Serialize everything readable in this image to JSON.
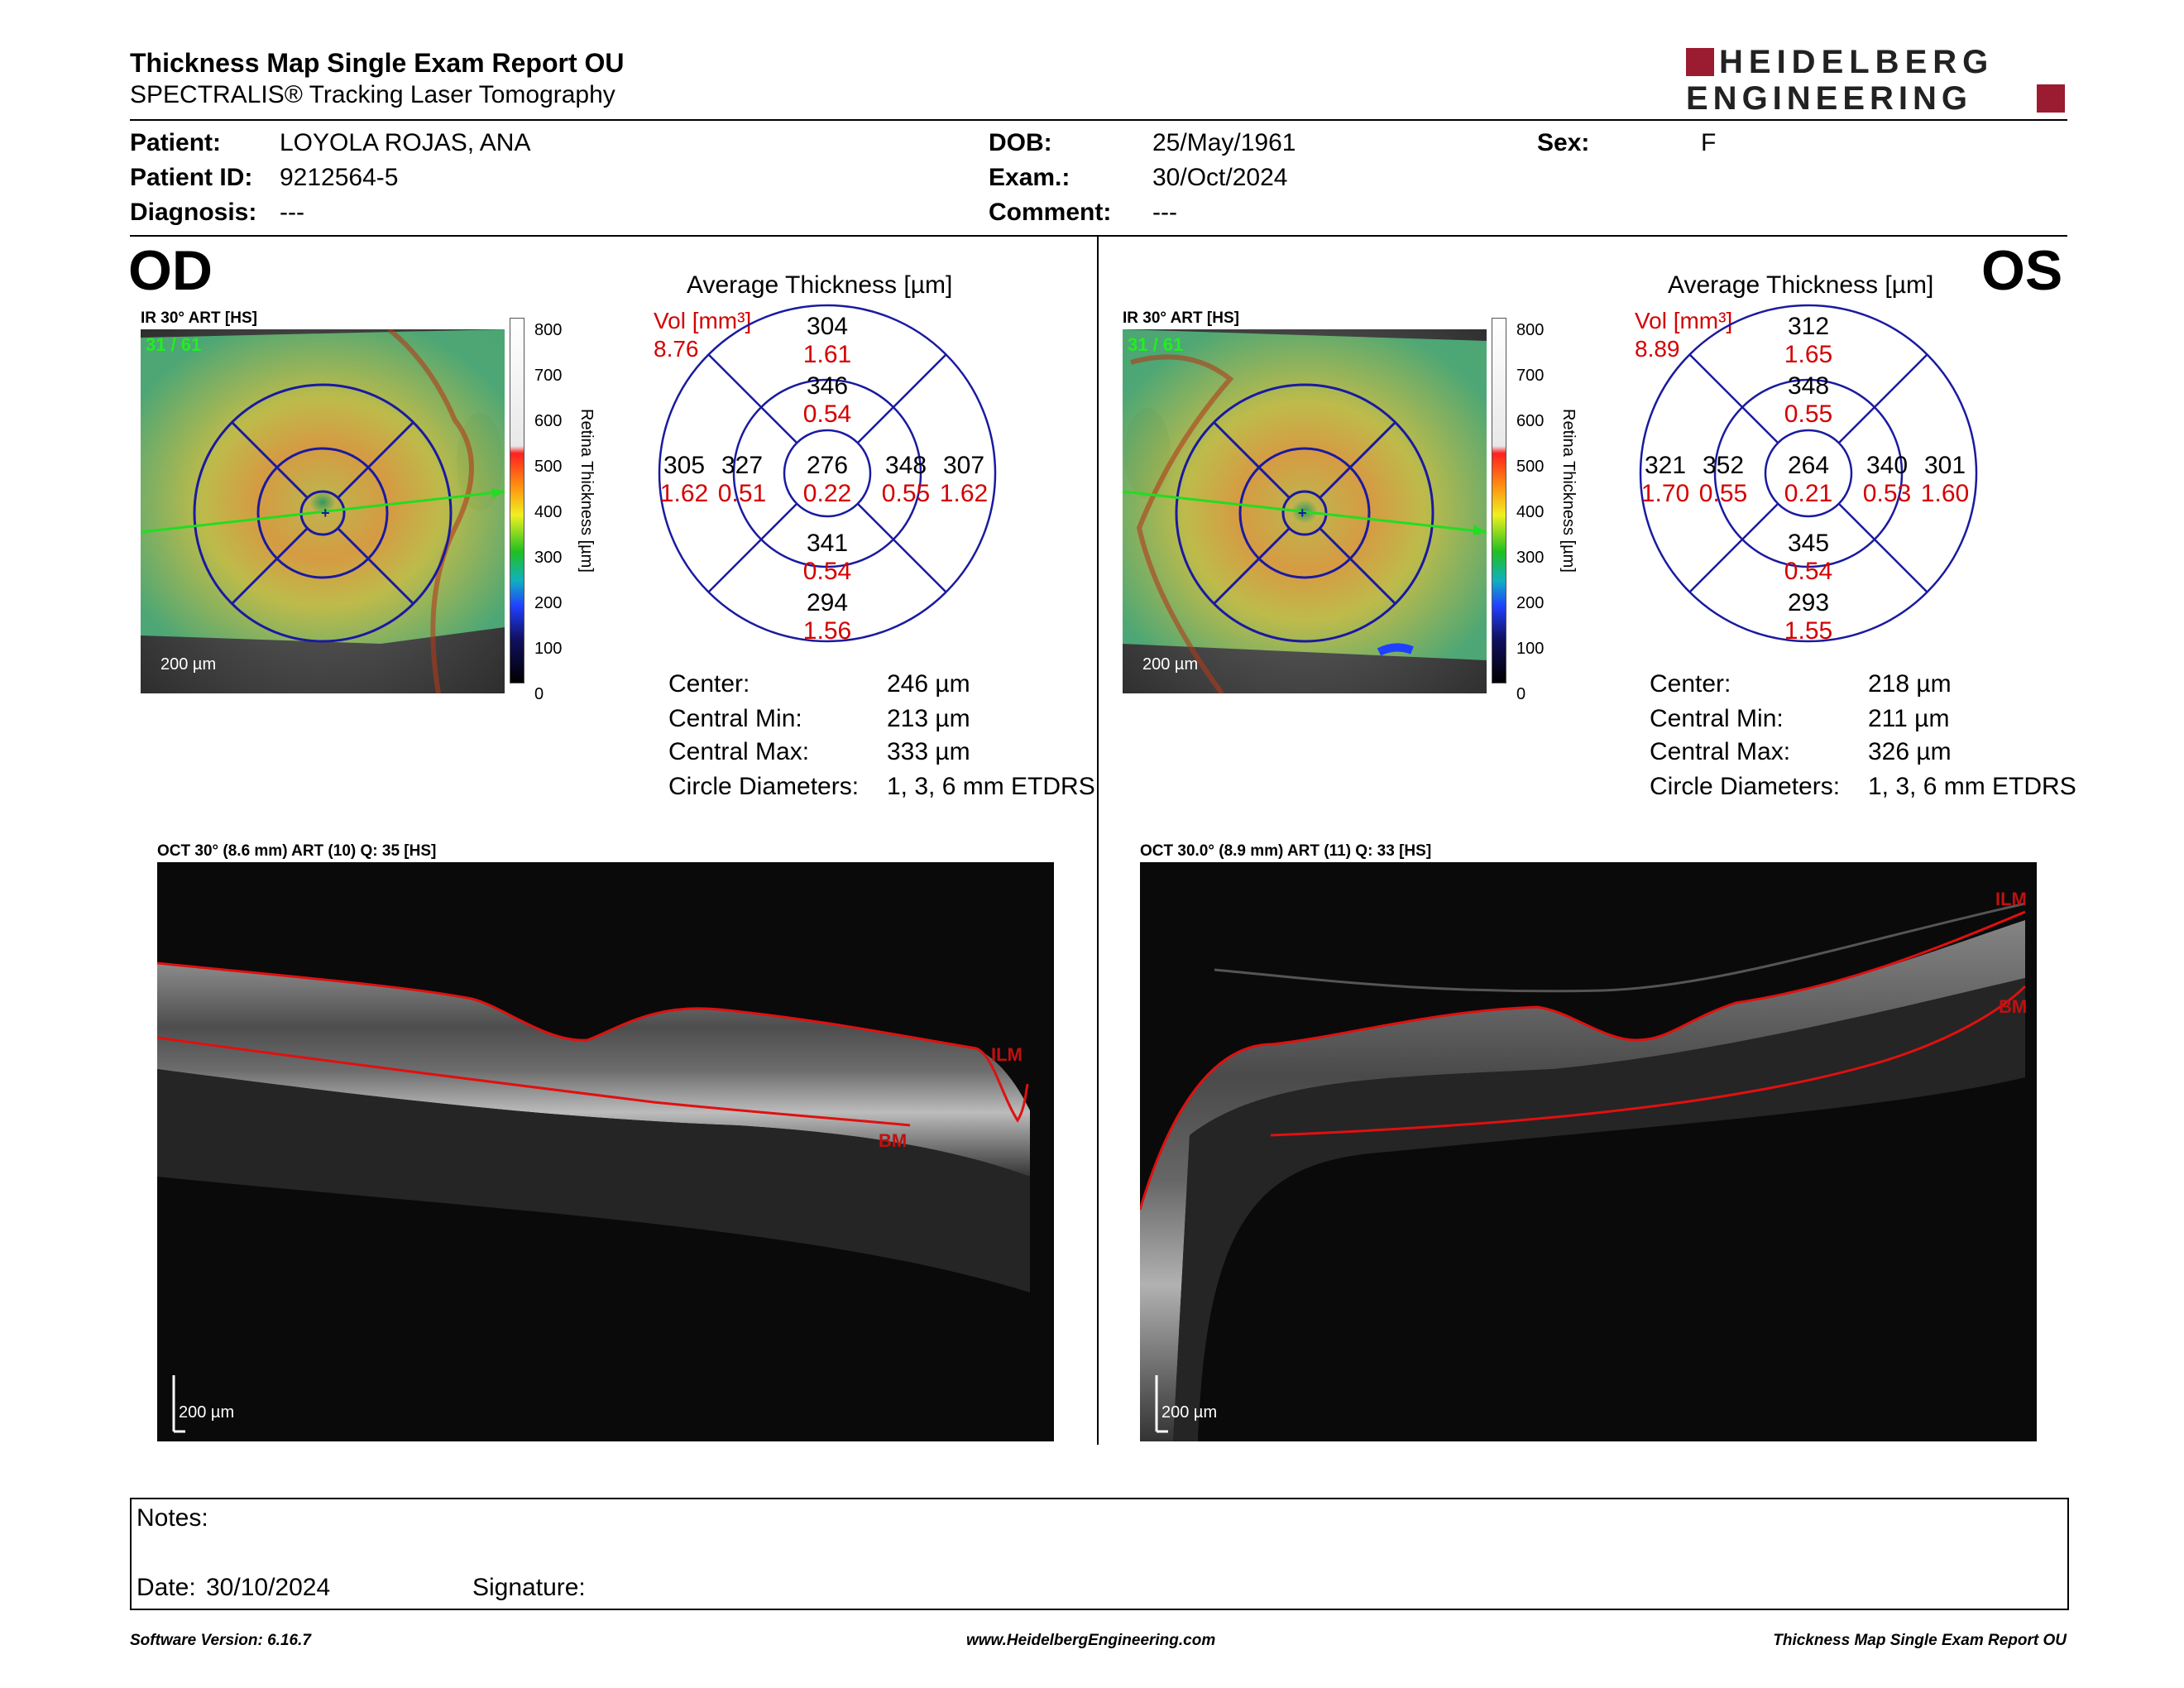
{
  "report": {
    "title": "Thickness Map Single Exam Report OU",
    "subtitle": "SPECTRALIS® Tracking Laser Tomography",
    "logo_line1": "HEIDELBERG",
    "logo_line2": "ENGINEERING"
  },
  "patient": {
    "patient_label": "Patient:",
    "patient_value": "LOYOLA ROJAS, ANA",
    "id_label": "Patient ID:",
    "id_value": "9212564-5",
    "diagnosis_label": "Diagnosis:",
    "diagnosis_value": "---",
    "dob_label": "DOB:",
    "dob_value": "25/May/1961",
    "exam_label": "Exam.:",
    "exam_value": "30/Oct/2024",
    "comment_label": "Comment:",
    "comment_value": "---",
    "sex_label": "Sex:",
    "sex_value": "F"
  },
  "od": {
    "eye": "OD",
    "ir_label": "IR 30° ART [HS]",
    "frame": "31 / 61",
    "scale": "200 µm",
    "avg_title": "Average Thickness [µm]",
    "vol_label": "Vol [mm³]",
    "vol_value": "8.76",
    "center": {
      "t": "276",
      "v": "0.22"
    },
    "inner": {
      "sup": {
        "t": "346",
        "v": "0.54"
      },
      "inf": {
        "t": "341",
        "v": "0.54"
      },
      "left": {
        "t": "327",
        "v": "0.51"
      },
      "right": {
        "t": "348",
        "v": "0.55"
      }
    },
    "outer": {
      "sup": {
        "t": "304",
        "v": "1.61"
      },
      "inf": {
        "t": "294",
        "v": "1.56"
      },
      "left": {
        "t": "305",
        "v": "1.62"
      },
      "right": {
        "t": "307",
        "v": "1.62"
      }
    },
    "stats": {
      "center_label": "Center:",
      "center_value": "246 µm",
      "min_label": "Central Min:",
      "min_value": "213 µm",
      "max_label": "Central Max:",
      "max_value": "333 µm",
      "diam_label": "Circle Diameters:",
      "diam_value": "1, 3, 6 mm ETDRS"
    },
    "oct_label": "OCT 30° (8.6 mm) ART (10) Q: 35 [HS]",
    "ilm": "ILM",
    "bm": "BM",
    "oct_scale": "200 µm"
  },
  "os": {
    "eye": "OS",
    "ir_label": "IR 30° ART [HS]",
    "frame": "31 / 61",
    "scale": "200 µm",
    "avg_title": "Average Thickness [µm]",
    "vol_label": "Vol [mm³]",
    "vol_value": "8.89",
    "center": {
      "t": "264",
      "v": "0.21"
    },
    "inner": {
      "sup": {
        "t": "348",
        "v": "0.55"
      },
      "inf": {
        "t": "345",
        "v": "0.54"
      },
      "left": {
        "t": "352",
        "v": "0.55"
      },
      "right": {
        "t": "340",
        "v": "0.53"
      }
    },
    "outer": {
      "sup": {
        "t": "312",
        "v": "1.65"
      },
      "inf": {
        "t": "293",
        "v": "1.55"
      },
      "left": {
        "t": "321",
        "v": "1.70"
      },
      "right": {
        "t": "301",
        "v": "1.60"
      }
    },
    "stats": {
      "center_label": "Center:",
      "center_value": "218 µm",
      "min_label": "Central Min:",
      "min_value": "211 µm",
      "max_label": "Central Max:",
      "max_value": "326 µm",
      "diam_label": "Circle Diameters:",
      "diam_value": "1, 3, 6 mm ETDRS"
    },
    "oct_label": "OCT 30.0° (8.9 mm) ART (11) Q: 33 [HS]",
    "ilm": "ILM",
    "bm": "BM",
    "oct_scale": "200 µm"
  },
  "colorbar": {
    "ticks": [
      "800",
      "700",
      "600",
      "500",
      "400",
      "300",
      "200",
      "100",
      "0"
    ],
    "label": "Retina Thickness [µm]"
  },
  "notes": {
    "notes_label": "Notes:",
    "date_label": "Date:",
    "date_value": "30/10/2024",
    "signature_label": "Signature:"
  },
  "footer": {
    "software": "Software Version: 6.16.7",
    "website": "www.HeidelbergEngineering.com",
    "report_name": "Thickness Map Single Exam Report OU"
  },
  "colors": {
    "accent": "#9b1b30",
    "grid": "#1a1aa0",
    "values_red": "#d40000",
    "scan_green": "#22dd22"
  }
}
